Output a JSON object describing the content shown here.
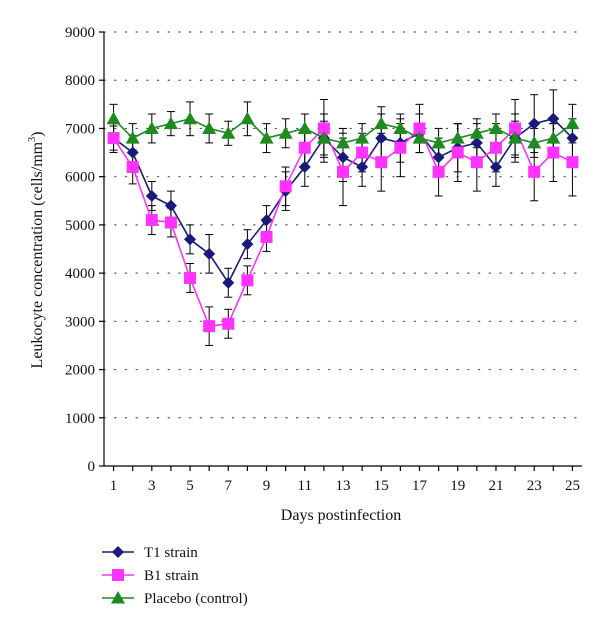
{
  "chart_data": {
    "type": "line",
    "title": "",
    "xlabel": "Days postinfection",
    "ylabel": "Leukocyte concentration (cells/mm",
    "ylabel_sup": "3",
    "ylabel_end": ")",
    "x": [
      1,
      2,
      3,
      4,
      5,
      6,
      7,
      8,
      9,
      10,
      11,
      12,
      13,
      14,
      15,
      16,
      17,
      18,
      19,
      20,
      21,
      22,
      23,
      24,
      25
    ],
    "x_tick_labels": [
      "1",
      "3",
      "5",
      "7",
      "9",
      "11",
      "13",
      "15",
      "17",
      "19",
      "21",
      "23",
      "25"
    ],
    "x_ticks": [
      1,
      3,
      5,
      7,
      9,
      11,
      13,
      15,
      17,
      19,
      21,
      23,
      25
    ],
    "y_ticks": [
      0,
      1000,
      2000,
      3000,
      4000,
      5000,
      6000,
      7000,
      8000,
      9000
    ],
    "y_tick_labels": [
      "0",
      "1000",
      "2000",
      "3000",
      "4000",
      "5000",
      "6000",
      "7000",
      "8000",
      "9000"
    ],
    "ylim": [
      0,
      9000
    ],
    "xlim": [
      0.5,
      25.5
    ],
    "grid": "horizontal dotted",
    "legend_position": "bottom-left",
    "series": [
      {
        "name": "T1 strain",
        "color": "#1a1a7a",
        "marker": "diamond",
        "values": [
          6800,
          6500,
          5600,
          5400,
          4700,
          4400,
          3800,
          4600,
          5100,
          5700,
          6200,
          6800,
          6400,
          6200,
          6800,
          6700,
          6900,
          6400,
          6600,
          6700,
          6200,
          6800,
          7100,
          7200,
          6800
        ],
        "errors": [
          250,
          350,
          300,
          300,
          300,
          400,
          300,
          300,
          300,
          400,
          400,
          500,
          500,
          400,
          500,
          400,
          400,
          400,
          500,
          400,
          400,
          500,
          600,
          600,
          400
        ]
      },
      {
        "name": "B1 strain",
        "color": "#ff33ff",
        "marker": "square",
        "values": [
          6800,
          6200,
          5100,
          5050,
          3900,
          2900,
          2950,
          3850,
          4750,
          5800,
          6600,
          7000,
          6100,
          6500,
          6300,
          6600,
          7000,
          6100,
          6500,
          6300,
          6600,
          7000,
          6100,
          6500,
          6300
        ],
        "errors": [
          300,
          350,
          300,
          300,
          300,
          400,
          300,
          300,
          300,
          400,
          400,
          600,
          700,
          400,
          600,
          600,
          500,
          500,
          600,
          600,
          500,
          600,
          600,
          600,
          700
        ]
      },
      {
        "name": "Placebo (control)",
        "color": "#1f8a1f",
        "marker": "triangle",
        "values": [
          7200,
          6800,
          7000,
          7100,
          7200,
          7000,
          6900,
          7200,
          6800,
          6900,
          7000,
          6800,
          6700,
          6800,
          7100,
          7000,
          6800,
          6700,
          6800,
          6900,
          7000,
          6800,
          6700,
          6800,
          7100
        ],
        "errors": [
          300,
          300,
          300,
          250,
          350,
          300,
          250,
          350,
          300,
          300,
          300,
          350,
          300,
          300,
          350,
          300,
          300,
          300,
          300,
          300,
          300,
          350,
          300,
          300,
          400
        ]
      }
    ]
  }
}
